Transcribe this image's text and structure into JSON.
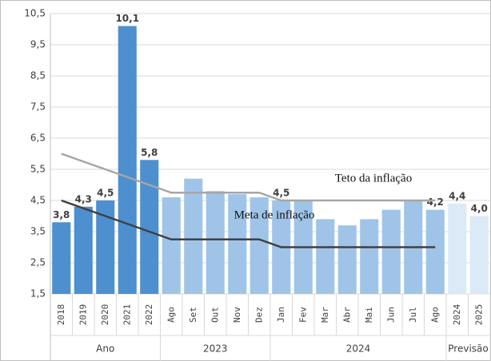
{
  "chart_data": {
    "type": "bar",
    "categories": [
      "2018",
      "2019",
      "2020",
      "2021",
      "2022",
      "Ago",
      "Set",
      "Out",
      "Nov",
      "Dez",
      "Jan",
      "Fev",
      "Mar",
      "Abr",
      "Mai",
      "Jun",
      "Jul",
      "Ago",
      "2024",
      "2025"
    ],
    "groups": [
      {
        "label": "Ano",
        "count": 5
      },
      {
        "label": "2023",
        "count": 5
      },
      {
        "label": "2024",
        "count": 8
      },
      {
        "label": "Previsão",
        "count": 2
      }
    ],
    "values": [
      3.8,
      4.3,
      4.5,
      10.1,
      5.8,
      4.6,
      5.2,
      4.8,
      4.7,
      4.6,
      4.5,
      4.5,
      3.9,
      3.7,
      3.9,
      4.2,
      4.5,
      4.2,
      4.4,
      4.0
    ],
    "value_labels": [
      "3,8",
      "4,3",
      "4,5",
      "10,1",
      "5,8",
      null,
      null,
      null,
      null,
      null,
      "4,5",
      null,
      null,
      null,
      null,
      null,
      null,
      "4,2",
      "4,4",
      "4,0"
    ],
    "colors": [
      "#4e8fd0",
      "#4e8fd0",
      "#4e8fd0",
      "#4e8fd0",
      "#4e8fd0",
      "#9fc4e8",
      "#9fc4e8",
      "#9fc4e8",
      "#9fc4e8",
      "#9fc4e8",
      "#9fc4e8",
      "#9fc4e8",
      "#9fc4e8",
      "#9fc4e8",
      "#9fc4e8",
      "#9fc4e8",
      "#9fc4e8",
      "#9fc4e8",
      "#dce9f6",
      "#dce9f6"
    ],
    "series": [
      {
        "name": "Teto da inflação",
        "color": "#a6a6a6",
        "values": [
          6.0,
          5.75,
          5.5,
          5.25,
          5.0,
          4.75,
          4.75,
          4.75,
          4.75,
          4.75,
          4.5,
          4.5,
          4.5,
          4.5,
          4.5,
          4.5,
          4.5,
          4.5,
          null,
          null
        ]
      },
      {
        "name": "Meta de inflação",
        "color": "#404040",
        "values": [
          4.5,
          4.25,
          4.0,
          3.75,
          3.5,
          3.25,
          3.25,
          3.25,
          3.25,
          3.25,
          3.0,
          3.0,
          3.0,
          3.0,
          3.0,
          3.0,
          3.0,
          3.0,
          null,
          null
        ]
      }
    ],
    "ylim": [
      1.5,
      10.5
    ],
    "yticks": [
      {
        "value": 1.5,
        "label": "1,5"
      },
      {
        "value": 2.5,
        "label": "2,5"
      },
      {
        "value": 3.5,
        "label": "3,5"
      },
      {
        "value": 4.5,
        "label": "4,5"
      },
      {
        "value": 5.5,
        "label": "5,5"
      },
      {
        "value": 6.5,
        "label": "6,5"
      },
      {
        "value": 7.5,
        "label": "7,5"
      },
      {
        "value": 8.5,
        "label": "8,5"
      },
      {
        "value": 9.5,
        "label": "9,5"
      },
      {
        "value": 10.5,
        "label": "10,5"
      }
    ],
    "grid": true
  }
}
